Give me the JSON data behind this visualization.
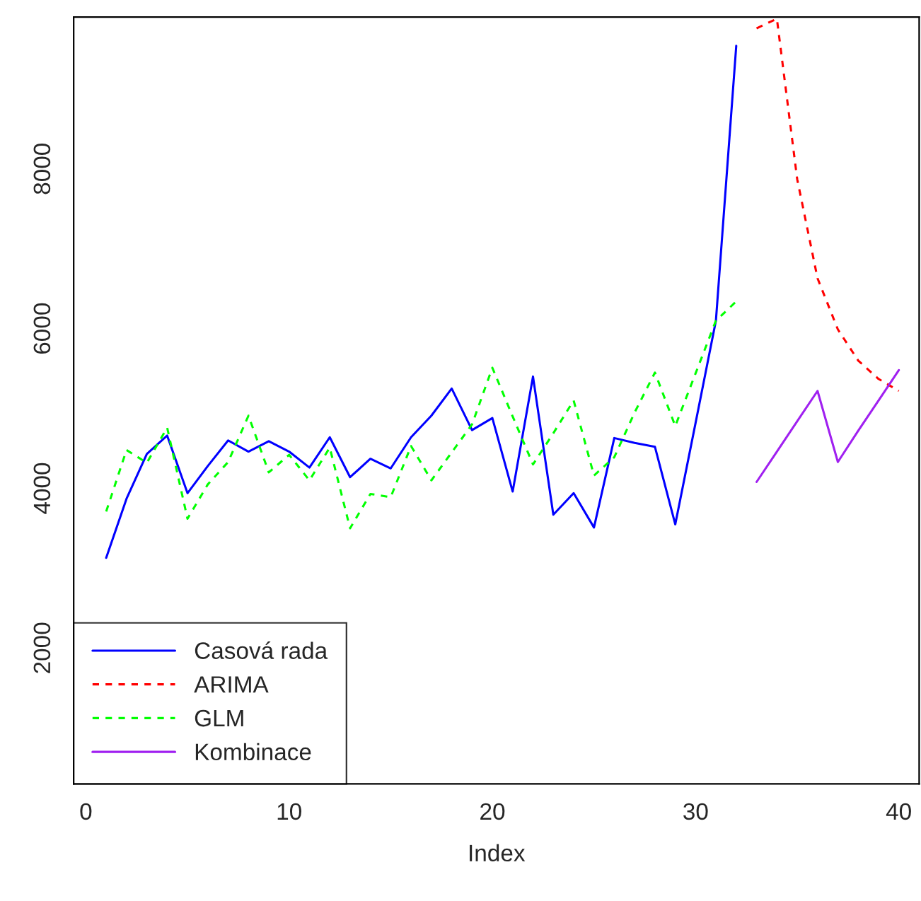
{
  "chart_data": {
    "type": "line",
    "xlabel": "Index",
    "xlim": [
      -0.6,
      41.0
    ],
    "ylim": [
      300,
      9900
    ],
    "xticks": [
      0,
      10,
      20,
      30,
      40
    ],
    "yticks": [
      2000,
      4000,
      6000,
      8000
    ],
    "grid": false,
    "legend": "bottom left",
    "series": [
      {
        "name": "Casová rada",
        "color": "#0000ff",
        "line_style": "solid",
        "x": [
          1,
          2,
          3,
          4,
          5,
          6,
          7,
          8,
          9,
          10,
          11,
          12,
          13,
          14,
          15,
          16,
          17,
          18,
          19,
          20,
          21,
          22,
          23,
          24,
          25,
          26,
          27,
          28,
          29,
          30,
          31,
          32
        ],
        "values": [
          3130,
          3870,
          4430,
          4660,
          3940,
          4280,
          4600,
          4460,
          4590,
          4460,
          4260,
          4640,
          4140,
          4370,
          4250,
          4640,
          4910,
          5250,
          4730,
          4880,
          3960,
          5400,
          3670,
          3940,
          3510,
          4630,
          4570,
          4520,
          3550,
          4820,
          6100,
          9540
        ]
      },
      {
        "name": "ARIMA",
        "color": "#ff0000",
        "line_style": "dashed",
        "x": [
          33,
          34,
          35,
          36,
          37,
          38,
          39,
          40
        ],
        "values": [
          9760,
          9880,
          7870,
          6630,
          5990,
          5600,
          5370,
          5220
        ]
      },
      {
        "name": "GLM",
        "color": "#00ff00",
        "line_style": "dashed",
        "x": [
          1,
          2,
          3,
          4,
          5,
          6,
          7,
          8,
          9,
          10,
          11,
          12,
          13,
          14,
          15,
          16,
          17,
          18,
          19,
          20,
          21,
          22,
          23,
          24,
          25,
          26,
          27,
          28,
          29,
          30,
          31,
          32
        ],
        "values": [
          3710,
          4480,
          4320,
          4760,
          3620,
          4050,
          4330,
          4910,
          4200,
          4420,
          4100,
          4510,
          3500,
          3930,
          3890,
          4530,
          4100,
          4450,
          4800,
          5510,
          4900,
          4300,
          4690,
          5100,
          4160,
          4390,
          4950,
          5450,
          4780,
          5440,
          6100,
          6340
        ]
      },
      {
        "name": "Kombinace",
        "color": "#a020f0",
        "line_style": "solid",
        "x": [
          33,
          34,
          35,
          36,
          37,
          38,
          39,
          40
        ],
        "values": [
          4080,
          4460,
          4840,
          5220,
          4330,
          4720,
          5100,
          5480
        ]
      }
    ]
  }
}
